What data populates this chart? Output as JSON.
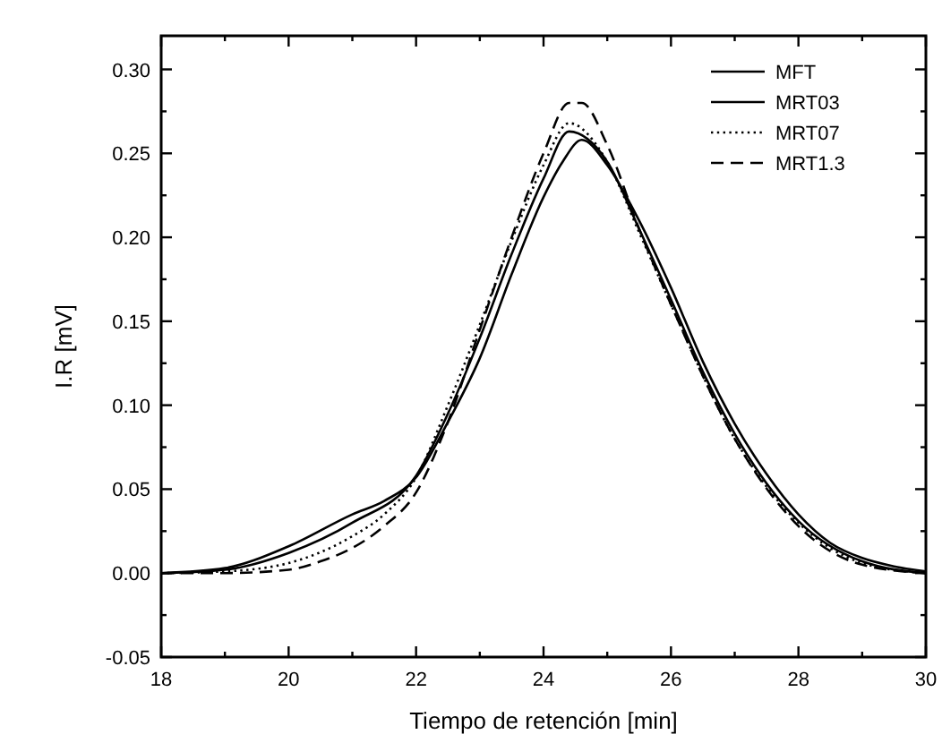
{
  "chart_data": {
    "type": "line",
    "xlabel": "Tiempo de retención [min]",
    "ylabel": "I.R [mV]",
    "xlim": [
      18,
      30
    ],
    "ylim": [
      -0.05,
      0.32
    ],
    "xticks": [
      18,
      {
        "value": 19,
        "label": null
      },
      20,
      {
        "value": 21,
        "label": null
      },
      22,
      {
        "value": 23,
        "label": null
      },
      24,
      {
        "value": 25,
        "label": null
      },
      26,
      {
        "value": 27,
        "label": null
      },
      28,
      {
        "value": 29,
        "label": null
      },
      30
    ],
    "yticks": [
      {
        "value": -0.05,
        "label": "-0.05"
      },
      {
        "value": -0.025,
        "label": null
      },
      {
        "value": 0,
        "label": "0.00"
      },
      {
        "value": 0.025,
        "label": null
      },
      {
        "value": 0.05,
        "label": "0.05"
      },
      {
        "value": 0.075,
        "label": null
      },
      {
        "value": 0.1,
        "label": "0.10"
      },
      {
        "value": 0.125,
        "label": null
      },
      {
        "value": 0.15,
        "label": "0.15"
      },
      {
        "value": 0.175,
        "label": null
      },
      {
        "value": 0.2,
        "label": "0.20"
      },
      {
        "value": 0.225,
        "label": null
      },
      {
        "value": 0.25,
        "label": "0.25"
      },
      {
        "value": 0.275,
        "label": null
      },
      {
        "value": 0.3,
        "label": "0.30"
      }
    ],
    "grid": false,
    "legend": "top right",
    "marker": "none",
    "series": [
      {
        "name": "MFT",
        "color": "#000000",
        "line_style": "solid",
        "x": [
          18,
          19,
          20,
          21,
          21.5,
          22,
          22.5,
          23,
          23.5,
          24,
          24.3,
          24.6,
          25,
          25.5,
          26,
          26.5,
          27,
          27.5,
          28,
          28.5,
          29,
          29.5,
          30
        ],
        "values": [
          0,
          0.003,
          0.016,
          0.035,
          0.043,
          0.057,
          0.09,
          0.128,
          0.178,
          0.224,
          0.245,
          0.258,
          0.243,
          0.21,
          0.17,
          0.126,
          0.089,
          0.059,
          0.035,
          0.018,
          0.009,
          0.004,
          0.001
        ]
      },
      {
        "name": "MRT03",
        "color": "#000000",
        "line_style": "solid",
        "x": [
          18,
          19,
          20,
          21,
          22,
          22.5,
          23,
          23.5,
          24,
          24.4,
          25,
          25.5,
          26,
          26.5,
          27,
          28,
          29,
          30
        ],
        "values": [
          0,
          0.002,
          0.012,
          0.03,
          0.058,
          0.095,
          0.14,
          0.19,
          0.235,
          0.263,
          0.245,
          0.205,
          0.163,
          0.12,
          0.083,
          0.031,
          0.007,
          0
        ]
      },
      {
        "name": "MRT07",
        "color": "#000000",
        "line_style": "dotted",
        "x": [
          18,
          19,
          20,
          21,
          21.5,
          22,
          22.5,
          23,
          23.5,
          24,
          24.4,
          25,
          25.5,
          26,
          27,
          28,
          29,
          30
        ],
        "values": [
          0,
          0.001,
          0.006,
          0.022,
          0.035,
          0.057,
          0.1,
          0.148,
          0.198,
          0.243,
          0.268,
          0.245,
          0.203,
          0.16,
          0.08,
          0.03,
          0.006,
          0
        ]
      },
      {
        "name": "MRT1.3",
        "color": "#000000",
        "line_style": "dashed",
        "x": [
          18,
          19,
          20,
          20.5,
          21,
          21.5,
          22,
          22.5,
          23,
          23.5,
          24,
          24.4,
          24.6,
          25,
          25.5,
          26,
          27,
          28,
          29,
          30
        ],
        "values": [
          0,
          0,
          0.002,
          0.007,
          0.015,
          0.028,
          0.048,
          0.09,
          0.145,
          0.2,
          0.25,
          0.28,
          0.28,
          0.255,
          0.205,
          0.16,
          0.08,
          0.028,
          0.005,
          0
        ]
      }
    ]
  }
}
